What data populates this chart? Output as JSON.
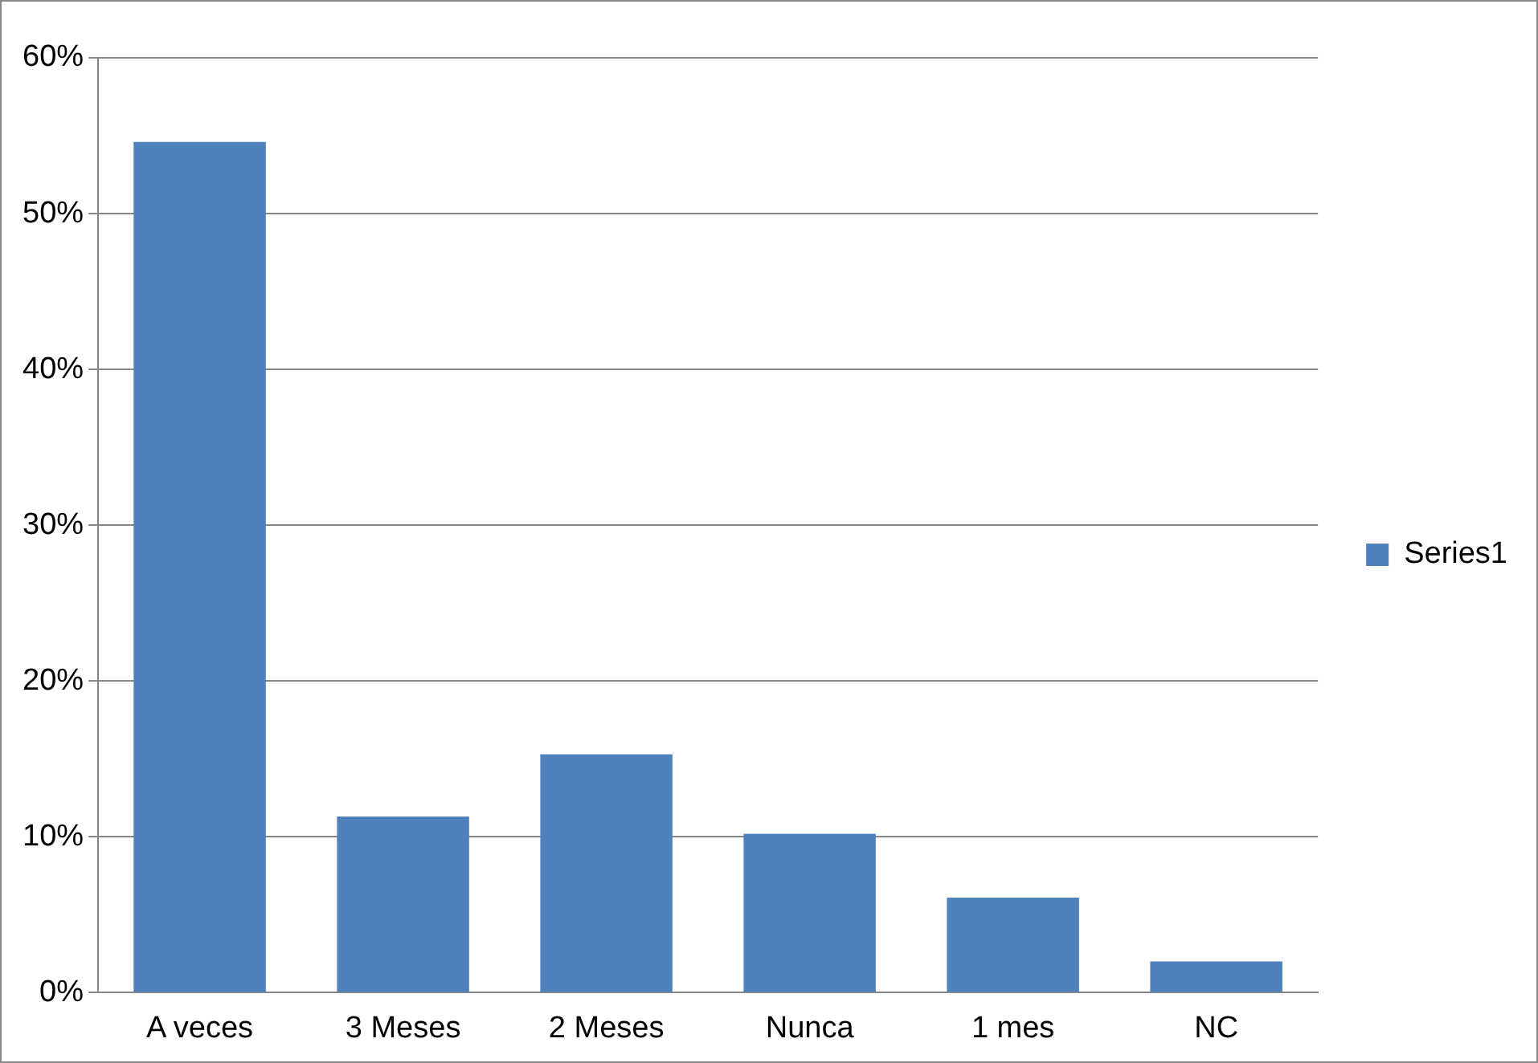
{
  "chart_data": {
    "type": "bar",
    "categories": [
      "A veces",
      "3 Meses",
      "2 Meses",
      "Nunca",
      "1 mes",
      "NC"
    ],
    "series": [
      {
        "name": "Series1",
        "color": "#4f81bd",
        "values": [
          54.6,
          11.3,
          15.3,
          10.2,
          6.1,
          2.0
        ]
      }
    ],
    "ylim": [
      0,
      60
    ],
    "yticks": [
      {
        "value": 0,
        "label": "0%"
      },
      {
        "value": 10,
        "label": "10%"
      },
      {
        "value": 20,
        "label": "20%"
      },
      {
        "value": 30,
        "label": "30%"
      },
      {
        "value": 40,
        "label": "40%"
      },
      {
        "value": 50,
        "label": "50%"
      },
      {
        "value": 60,
        "label": "60%"
      }
    ],
    "grid": "y",
    "legend": "right"
  }
}
